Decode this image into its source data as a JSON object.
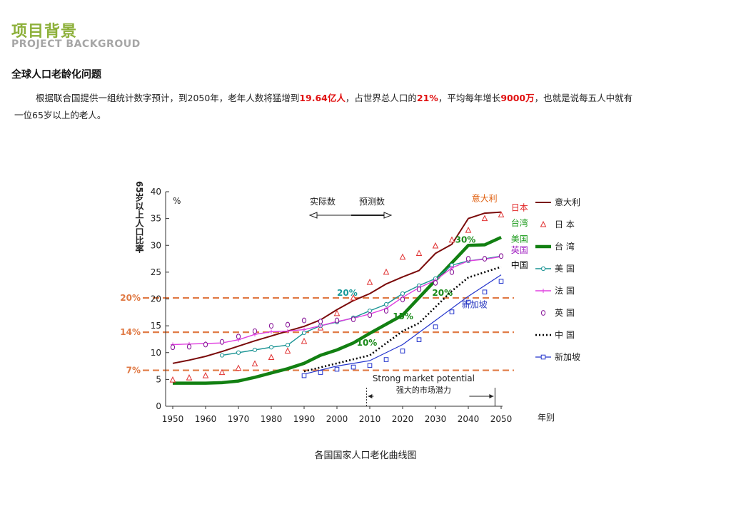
{
  "header": {
    "title": "项目背景",
    "subtitle": "PROJECT BACKGROUD"
  },
  "section_title": "全球人口老龄化问题",
  "paragraph": {
    "p1": "根据联合国提供一组统计数字预计，到2050年，老年人数将猛增到",
    "h1": "19.64亿人",
    "p2": "，占世界总人口的",
    "h2": "21%",
    "p3": "，平均每年增长",
    "h3": "9000万",
    "p4": "，也就是说每五人中就有",
    "p5": "一位65岁以上的老人。"
  },
  "caption": "各国国家人口老化曲线图",
  "chart_data": {
    "type": "line",
    "ylabel": "65岁以上人口比率",
    "yunit": "%",
    "xlabel": "年别",
    "xlim": [
      1950,
      2050
    ],
    "ylim": [
      0,
      40
    ],
    "xticks": [
      1950,
      1960,
      1970,
      1980,
      1990,
      2000,
      2010,
      2020,
      2030,
      2040,
      2050
    ],
    "yticks": [
      0,
      5,
      10,
      15,
      20,
      25,
      30,
      35,
      40
    ],
    "actual_label": "实际数",
    "forecast_label": "预测数",
    "reference_lines": [
      {
        "label": "20%",
        "value": 20.2
      },
      {
        "label": "14%",
        "value": 13.8
      },
      {
        "label": "7%",
        "value": 6.7
      }
    ],
    "market_note": {
      "en": "Strong market potential",
      "zh": "强大的市场潜力",
      "from": 2009,
      "to": 2049
    },
    "series": [
      {
        "name": "意大利",
        "legend": "意大利",
        "color": "#7a0a0a",
        "style": "solid",
        "width": 2,
        "x": [
          1950,
          1955,
          1960,
          1965,
          1970,
          1975,
          1980,
          1985,
          1990,
          1995,
          2000,
          2005,
          2010,
          2015,
          2020,
          2025,
          2030,
          2035,
          2040,
          2045,
          2050
        ],
        "y": [
          8.0,
          8.6,
          9.3,
          10.2,
          11.2,
          12.2,
          13.1,
          14.0,
          14.9,
          16.1,
          18.0,
          19.7,
          21.0,
          22.8,
          24.1,
          25.3,
          28.5,
          30.2,
          35.0,
          36.0,
          36.2
        ]
      },
      {
        "name": "日本",
        "legend": "日 本",
        "color": "#e03030",
        "style": "none",
        "marker": "triangle",
        "x": [
          1950,
          1955,
          1960,
          1965,
          1970,
          1975,
          1980,
          1985,
          1990,
          1995,
          2000,
          2005,
          2010,
          2015,
          2020,
          2025,
          2030,
          2035,
          2040,
          2045,
          2050
        ],
        "y": [
          4.9,
          5.3,
          5.7,
          6.3,
          7.1,
          7.9,
          9.1,
          10.3,
          12.1,
          14.6,
          17.3,
          20.2,
          23.1,
          25.0,
          27.8,
          28.5,
          29.9,
          31.0,
          32.8,
          35.0,
          35.7
        ]
      },
      {
        "name": "台湾",
        "legend": "台 湾",
        "color": "#128012",
        "style": "solid",
        "width": 4.5,
        "x": [
          1950,
          1960,
          1965,
          1970,
          1975,
          1980,
          1985,
          1990,
          1995,
          2000,
          2005,
          2010,
          2020,
          2030,
          2040,
          2045,
          2050
        ],
        "y": [
          4.3,
          4.3,
          4.4,
          4.7,
          5.4,
          6.2,
          7.0,
          8.0,
          9.5,
          10.5,
          11.8,
          13.6,
          17.0,
          23.5,
          30.0,
          30.1,
          31.5
        ]
      },
      {
        "name": "美国",
        "legend": "美 国",
        "color": "#1a9494",
        "style": "solid",
        "width": 1.4,
        "marker": "circle-small",
        "x": [
          1965,
          1970,
          1975,
          1980,
          1985,
          1990,
          1995,
          2000,
          2005,
          2010,
          2015,
          2020,
          2025,
          2030,
          2035,
          2040,
          2045,
          2050
        ],
        "y": [
          9.5,
          10.0,
          10.5,
          11.0,
          11.4,
          13.7,
          15.0,
          15.7,
          16.5,
          17.8,
          19.0,
          21.0,
          22.5,
          23.8,
          26.3,
          27.1,
          27.5,
          28.0
        ]
      },
      {
        "name": "法国",
        "legend": "法 国",
        "color": "#e040e0",
        "style": "solid",
        "width": 1.4,
        "marker": "plus",
        "x": [
          1950,
          1955,
          1960,
          1965,
          1970,
          1975,
          1980,
          1985,
          1990,
          1995,
          2000,
          2005,
          2010,
          2015,
          2020,
          2025,
          2030,
          2035,
          2040,
          2045,
          2050
        ],
        "y": [
          11.5,
          11.6,
          11.7,
          11.8,
          12.4,
          13.4,
          13.9,
          14.0,
          14.3,
          15.0,
          15.8,
          16.4,
          17.2,
          18.2,
          20.3,
          22.1,
          23.5,
          25.8,
          27.1,
          27.4,
          27.9
        ]
      },
      {
        "name": "英国",
        "legend": "英 国",
        "color": "#8a1a9a",
        "style": "none",
        "marker": "circle",
        "x": [
          1950,
          1955,
          1960,
          1965,
          1970,
          1975,
          1980,
          1985,
          1990,
          1995,
          2000,
          2005,
          2010,
          2015,
          2020,
          2025,
          2030,
          2035,
          2040,
          2045,
          2050
        ],
        "y": [
          11.0,
          11.1,
          11.5,
          12.0,
          13.0,
          14.0,
          15.0,
          15.2,
          16.0,
          15.8,
          16.0,
          16.2,
          17.0,
          17.8,
          19.9,
          21.8,
          23.0,
          25.0,
          27.5,
          27.5,
          28.0
        ]
      },
      {
        "name": "中国",
        "legend": "中 国",
        "color": "#000000",
        "style": "dotted",
        "width": 2.6,
        "x": [
          1990,
          2000,
          2010,
          2020,
          2025,
          2030,
          2035,
          2040,
          2050
        ],
        "y": [
          6.5,
          8.0,
          9.5,
          14.0,
          15.5,
          18.5,
          21.5,
          24.0,
          26.0
        ]
      },
      {
        "name": "新加坡",
        "legend": "新加坡",
        "color": "#2233cc",
        "style": "solid",
        "width": 1.2,
        "marker": "square",
        "x": [
          1990,
          2000,
          2010,
          2020,
          2030,
          2040,
          2050
        ],
        "y": [
          6.0,
          7.5,
          8.5,
          11.5,
          16.0,
          20.5,
          24.5
        ],
        "marker_x": [
          1990,
          1995,
          2000,
          2005,
          2010,
          2015,
          2020,
          2025,
          2030,
          2035,
          2040,
          2045,
          2050
        ],
        "marker_y": [
          5.7,
          6.3,
          6.9,
          7.3,
          7.6,
          8.7,
          10.3,
          12.4,
          14.8,
          17.6,
          19.4,
          21.3,
          23.3
        ]
      }
    ],
    "annotations": [
      {
        "text": "意大利",
        "color": "#e06010",
        "x": 2041,
        "y": 38.2
      },
      {
        "text": "日本",
        "color": "#e02020",
        "x": 2053,
        "y": 36.5
      },
      {
        "text": "台湾",
        "color": "#1a9a1a",
        "x": 2053,
        "y": 33.6
      },
      {
        "text": "美国",
        "color": "#1a9a1a",
        "x": 2053,
        "y": 30.6
      },
      {
        "text": "英国",
        "color": "#a020c0",
        "x": 2053,
        "y": 28.6
      },
      {
        "text": "中国",
        "color": "#000000",
        "x": 2053,
        "y": 25.8
      },
      {
        "text": "新加坡",
        "color": "#2a3ac0",
        "x": 2038,
        "y": 18.4
      },
      {
        "text": "30%",
        "color": "#1a8a1a",
        "x": 2036,
        "y": 30.5
      },
      {
        "text": "20%",
        "color": "#1a9a9a",
        "x": 2000,
        "y": 20.6
      },
      {
        "text": "20%",
        "color": "#1a8a1a",
        "x": 2029,
        "y": 20.6
      },
      {
        "text": "15%",
        "color": "#1a8a1a",
        "x": 2017,
        "y": 16.2
      },
      {
        "text": "10%",
        "color": "#1a8a1a",
        "x": 2006,
        "y": 11.3
      }
    ]
  }
}
